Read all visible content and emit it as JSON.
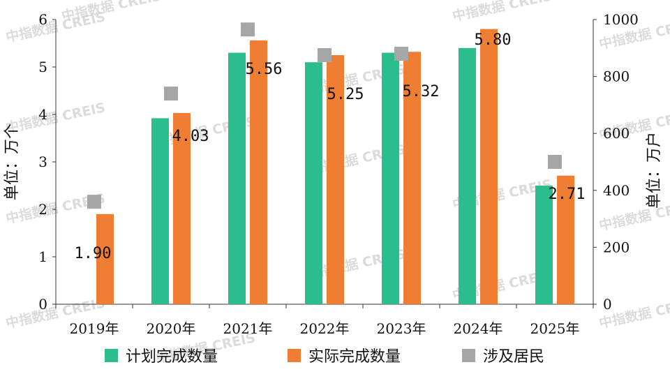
{
  "watermark": "中指数据 CREIS",
  "chart_data": {
    "type": "bar",
    "categories": [
      "2019年",
      "2020年",
      "2021年",
      "2022年",
      "2023年",
      "2024年",
      "2025年"
    ],
    "series": [
      {
        "name": "计划完成数量",
        "axis": "left",
        "kind": "bar",
        "color": "#2bbd8e",
        "values": [
          null,
          3.92,
          5.3,
          5.1,
          5.3,
          5.4,
          2.5
        ]
      },
      {
        "name": "实际完成数量",
        "axis": "left",
        "kind": "bar",
        "color": "#ef7d32",
        "values": [
          1.9,
          4.03,
          5.56,
          5.25,
          5.32,
          5.8,
          2.71
        ],
        "labels": [
          "1.90",
          "4.03",
          "5.56",
          "5.25",
          "5.32",
          "5.80",
          "2.71"
        ]
      },
      {
        "name": "涉及居民",
        "axis": "right",
        "kind": "marker",
        "color": "#a6a6a6",
        "values": [
          360,
          740,
          965,
          875,
          880,
          null,
          500
        ]
      }
    ],
    "ylabel_left": "单位：万个",
    "ylabel_right": "单位：万户",
    "ylim_left": [
      0,
      6
    ],
    "ylim_right": [
      0,
      1000
    ],
    "yticks_left": [
      "0",
      "1",
      "2",
      "3",
      "4",
      "5",
      "6"
    ],
    "yticks_right": [
      "0",
      "200",
      "400",
      "600",
      "800",
      "1000"
    ],
    "grid": false,
    "legend": "bottom"
  }
}
